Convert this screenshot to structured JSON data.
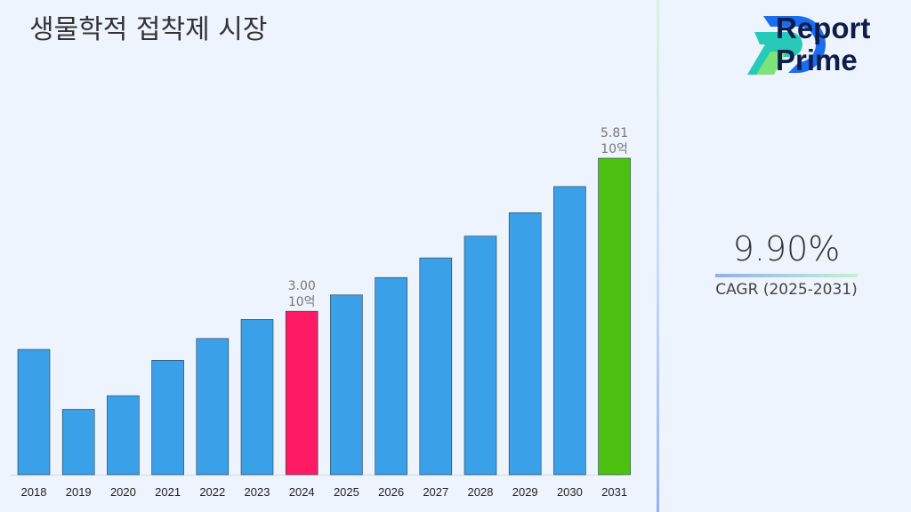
{
  "title": "생물학적 접착제 시장",
  "logo": {
    "line1": "Report",
    "line2": "Prime"
  },
  "cagr": {
    "value": "9.90%",
    "label": "CAGR (2025-2031)"
  },
  "colors": {
    "bar": "#3aa0e8",
    "highlight_2024": "#ff1a66",
    "highlight_2031": "#4cc010",
    "background": "#eef4fd"
  },
  "chart_data": {
    "type": "bar",
    "title": "생물학적 접착제 시장",
    "xlabel": "",
    "ylabel": "",
    "grid": false,
    "categories": [
      "2018",
      "2019",
      "2020",
      "2021",
      "2022",
      "2023",
      "2024",
      "2025",
      "2026",
      "2027",
      "2028",
      "2029",
      "2030",
      "2031"
    ],
    "values": [
      2.3,
      1.2,
      1.45,
      2.1,
      2.5,
      2.85,
      3.0,
      3.3,
      3.62,
      3.98,
      4.38,
      4.81,
      5.29,
      5.81
    ],
    "data_labels": [
      {
        "category": "2024",
        "value": "3.00",
        "unit": "10억"
      },
      {
        "category": "2031",
        "value": "5.81",
        "unit": "10억"
      }
    ]
  }
}
